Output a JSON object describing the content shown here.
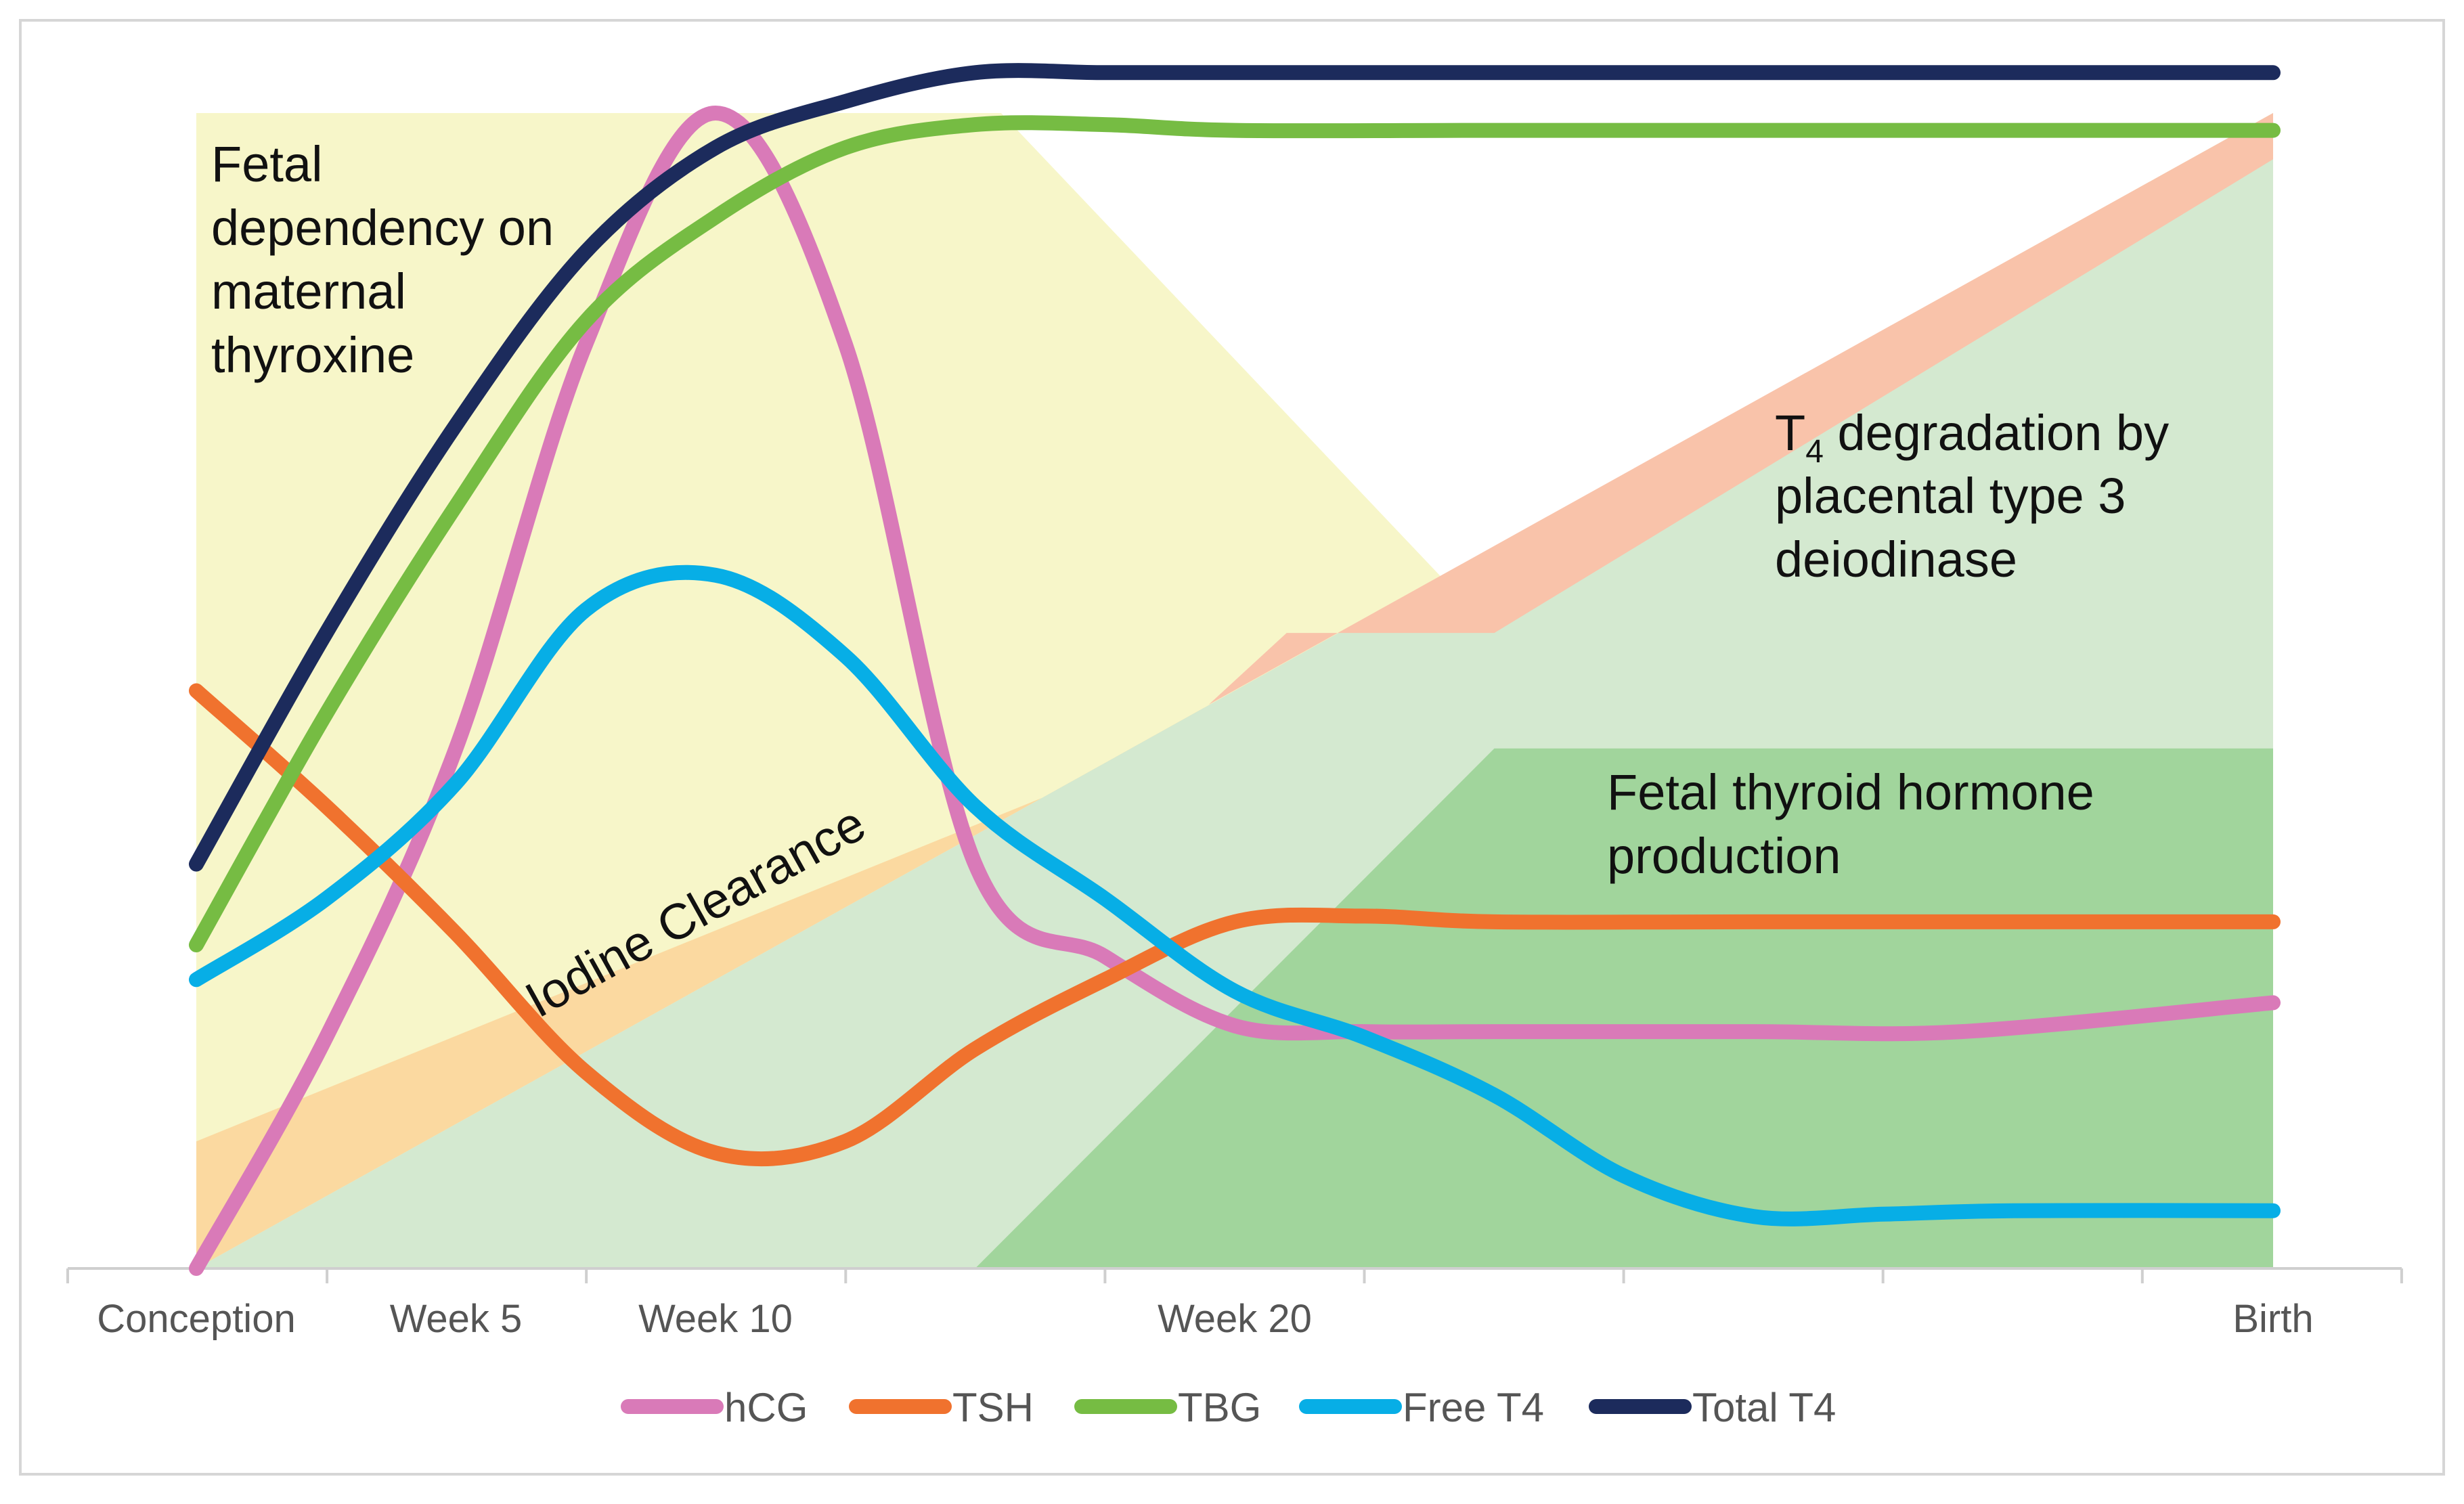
{
  "chart_data": {
    "type": "line",
    "title": "",
    "xlabel": "",
    "ylabel": "",
    "x_axis": {
      "range_weeks": [
        0,
        40
      ],
      "ticks": [
        {
          "week": 0,
          "label": "Conception"
        },
        {
          "week": 5,
          "label": "Week 5"
        },
        {
          "week": 10,
          "label": "Week 10"
        },
        {
          "week": 20,
          "label": "Week 20"
        },
        {
          "week": 40,
          "label": "Birth"
        }
      ]
    },
    "y_axis": {
      "range": [
        0,
        100
      ],
      "shown": false
    },
    "regions": [
      {
        "name": "Fetal dependency on maternal thyroxine",
        "label_lines": [
          "Fetal",
          "dependency on",
          "maternal",
          "thyroxine"
        ],
        "color": "#f7f6c9",
        "polygon": [
          [
            0,
            100
          ],
          [
            15.5,
            100
          ],
          [
            25,
            55
          ],
          [
            40,
            55
          ],
          [
            40,
            0
          ],
          [
            0,
            0
          ]
        ]
      },
      {
        "name": "Iodine Clearance",
        "label": "Iodine Clearance",
        "color": "#fbd9a0",
        "polygon": [
          [
            0,
            0
          ],
          [
            40,
            100
          ],
          [
            40,
            84
          ],
          [
            0,
            11
          ]
        ]
      },
      {
        "name": "T4 degradation by placental type 3 deiodinase",
        "label_main": "T",
        "label_sub": "4",
        "label_rest": " degradation by",
        "label_lines": [
          "placental type 3",
          "deiodinase"
        ],
        "color": "#bfe4f4",
        "wedge_color": "#f9c3aa",
        "polygon": [
          [
            25,
            55
          ],
          [
            40,
            55
          ],
          [
            40,
            100
          ]
        ]
      },
      {
        "name": "Light green background",
        "color": "#d4e9d0",
        "polygon": [
          [
            0,
            0
          ],
          [
            40,
            100
          ],
          [
            40,
            0
          ]
        ]
      },
      {
        "name": "Fetal thyroid hormone production",
        "label_lines": [
          "Fetal thyroid hormone",
          "production"
        ],
        "color": "#a1d59c",
        "polygon": [
          [
            15,
            0
          ],
          [
            25,
            45
          ],
          [
            40,
            45
          ],
          [
            40,
            0
          ]
        ]
      }
    ],
    "series": [
      {
        "name": "hCG",
        "color": "#d97ab8",
        "points": [
          [
            0,
            0
          ],
          [
            2.5,
            20
          ],
          [
            5,
            45
          ],
          [
            7.5,
            80
          ],
          [
            10,
            100
          ],
          [
            12.5,
            80
          ],
          [
            15,
            35
          ],
          [
            17.5,
            27
          ],
          [
            20,
            21
          ],
          [
            22.5,
            20.5
          ],
          [
            25,
            20.5
          ],
          [
            30,
            20.5
          ],
          [
            34,
            20.5
          ],
          [
            40,
            23
          ]
        ]
      },
      {
        "name": "TSH",
        "color": "#f0722e",
        "points": [
          [
            0,
            50
          ],
          [
            2.5,
            40
          ],
          [
            5,
            29
          ],
          [
            7.5,
            17
          ],
          [
            10,
            10
          ],
          [
            12.5,
            11
          ],
          [
            15,
            19
          ],
          [
            17.5,
            25
          ],
          [
            20,
            30
          ],
          [
            22.5,
            30.5
          ],
          [
            25,
            30
          ],
          [
            30,
            30
          ],
          [
            40,
            30
          ]
        ]
      },
      {
        "name": "TBG",
        "color": "#76bc43",
        "points": [
          [
            0,
            28
          ],
          [
            2.5,
            48
          ],
          [
            5,
            66
          ],
          [
            7.5,
            82
          ],
          [
            10,
            91
          ],
          [
            12.5,
            97
          ],
          [
            15,
            99
          ],
          [
            17.5,
            99
          ],
          [
            20,
            98.5
          ],
          [
            25,
            98.5
          ],
          [
            30,
            98.5
          ],
          [
            40,
            98.5
          ]
        ]
      },
      {
        "name": "Free T4",
        "color": "#07aee6",
        "points": [
          [
            0,
            25
          ],
          [
            2.5,
            32
          ],
          [
            5,
            42
          ],
          [
            7.5,
            57
          ],
          [
            10,
            60
          ],
          [
            12.5,
            53
          ],
          [
            15,
            40
          ],
          [
            17.5,
            32
          ],
          [
            20,
            24
          ],
          [
            22.5,
            20
          ],
          [
            25,
            15
          ],
          [
            27.5,
            8
          ],
          [
            30,
            4.5
          ],
          [
            32.5,
            4.7
          ],
          [
            35,
            5
          ],
          [
            40,
            5
          ]
        ]
      },
      {
        "name": "Total T4",
        "color": "#1c2b5c",
        "points": [
          [
            0,
            35
          ],
          [
            2.5,
            55
          ],
          [
            5,
            73
          ],
          [
            7.5,
            88
          ],
          [
            10,
            97
          ],
          [
            12.5,
            101
          ],
          [
            15,
            103.5
          ],
          [
            17.5,
            103.5
          ],
          [
            20,
            103.5
          ],
          [
            25,
            103.5
          ],
          [
            30,
            103.5
          ],
          [
            40,
            103.5
          ]
        ]
      }
    ],
    "legend": {
      "position": "bottom",
      "items": [
        "hCG",
        "TSH",
        "TBG",
        "Free T4",
        "Total T4"
      ]
    }
  }
}
